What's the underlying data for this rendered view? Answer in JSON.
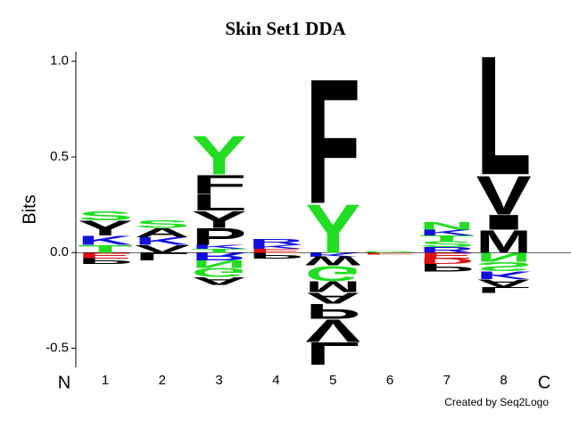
{
  "chart_data": {
    "type": "logo",
    "title": "Skin Set1 DDA",
    "y_label": "Bits",
    "start_label": "N",
    "end_label": "C",
    "credit": "Created by Seq2Logo",
    "ylim": [
      -0.6,
      1.05
    ],
    "yticks": [
      {
        "value": -0.5,
        "label": "-0.5"
      },
      {
        "value": 0,
        "label": "0.0"
      },
      {
        "value": 0.5,
        "label": "0.5"
      },
      {
        "value": 1,
        "label": "1.0"
      }
    ],
    "categories": [
      "1",
      "2",
      "3",
      "4",
      "5",
      "6",
      "7",
      "8"
    ],
    "letters": [
      [
        {
          "letter": "T",
          "value": 0.04,
          "color": "#22dd22"
        },
        {
          "letter": "K",
          "value": 0.05,
          "color": "#1111dd"
        },
        {
          "letter": "Y",
          "value": 0.08,
          "color": "#000000"
        },
        {
          "letter": "S",
          "value": 0.05,
          "color": "#22dd22"
        },
        {
          "letter": "E",
          "value": -0.03,
          "color": "#dd1111"
        },
        {
          "letter": "P",
          "value": -0.03,
          "color": "#000000"
        }
      ],
      [
        {
          "letter": "V",
          "value": 0.04,
          "color": "#000000"
        },
        {
          "letter": "K",
          "value": 0.04,
          "color": "#1111dd"
        },
        {
          "letter": "A",
          "value": 0.05,
          "color": "#000000"
        },
        {
          "letter": "S",
          "value": 0.04,
          "color": "#22dd22"
        },
        {
          "letter": "L",
          "value": -0.04,
          "color": "#000000"
        }
      ],
      [
        {
          "letter": "T",
          "value": 0.02,
          "color": "#22dd22"
        },
        {
          "letter": "K",
          "value": 0.02,
          "color": "#1111dd"
        },
        {
          "letter": "P",
          "value": 0.09,
          "color": "#000000"
        },
        {
          "letter": "Y",
          "value": 0.09,
          "color": "#000000"
        },
        {
          "letter": "L",
          "value": 0.09,
          "color": "#000000"
        },
        {
          "letter": "F",
          "value": 0.1,
          "color": "#000000"
        },
        {
          "letter": "Y",
          "value": 0.21,
          "color": "#22dd22"
        },
        {
          "letter": "R",
          "value": -0.04,
          "color": "#1111dd"
        },
        {
          "letter": "N",
          "value": -0.04,
          "color": "#22dd22"
        },
        {
          "letter": "G",
          "value": -0.05,
          "color": "#22dd22"
        },
        {
          "letter": "A",
          "value": -0.04,
          "color": "#000000"
        }
      ],
      [
        {
          "letter": "E",
          "value": 0.02,
          "color": "#dd1111"
        },
        {
          "letter": "K",
          "value": 0.02,
          "color": "#1111dd"
        },
        {
          "letter": "R",
          "value": 0.03,
          "color": "#1111dd"
        },
        {
          "letter": "P",
          "value": -0.03,
          "color": "#000000"
        }
      ],
      [
        {
          "letter": "Y",
          "value": 0.26,
          "color": "#22dd22"
        },
        {
          "letter": "F",
          "value": 0.67,
          "color": "#000000"
        },
        {
          "letter": "K",
          "value": -0.02,
          "color": "#1111dd"
        },
        {
          "letter": "W",
          "value": -0.05,
          "color": "#000000"
        },
        {
          "letter": "G",
          "value": -0.08,
          "color": "#22dd22"
        },
        {
          "letter": "M",
          "value": -0.06,
          "color": "#000000"
        },
        {
          "letter": "A",
          "value": -0.06,
          "color": "#000000"
        },
        {
          "letter": "P",
          "value": -0.08,
          "color": "#000000"
        },
        {
          "letter": "V",
          "value": -0.12,
          "color": "#000000"
        },
        {
          "letter": "L",
          "value": -0.12,
          "color": "#000000"
        }
      ],
      [
        {
          "letter": "G",
          "value": 0.01,
          "color": "#22dd22"
        },
        {
          "letter": "E",
          "value": -0.01,
          "color": "#dd1111"
        }
      ],
      [
        {
          "letter": "R",
          "value": 0.03,
          "color": "#1111dd"
        },
        {
          "letter": "S",
          "value": 0.03,
          "color": "#22dd22"
        },
        {
          "letter": "T",
          "value": 0.03,
          "color": "#22dd22"
        },
        {
          "letter": "K",
          "value": 0.03,
          "color": "#1111dd"
        },
        {
          "letter": "N",
          "value": 0.04,
          "color": "#22dd22"
        },
        {
          "letter": "E",
          "value": -0.03,
          "color": "#dd1111"
        },
        {
          "letter": "D",
          "value": -0.03,
          "color": "#dd1111"
        },
        {
          "letter": "P",
          "value": -0.04,
          "color": "#000000"
        }
      ],
      [
        {
          "letter": "M",
          "value": 0.12,
          "color": "#000000"
        },
        {
          "letter": "I",
          "value": 0.08,
          "color": "#000000"
        },
        {
          "letter": "V",
          "value": 0.21,
          "color": "#000000"
        },
        {
          "letter": "L",
          "value": 0.64,
          "color": "#000000"
        },
        {
          "letter": "N",
          "value": -0.05,
          "color": "#22dd22"
        },
        {
          "letter": "S",
          "value": -0.05,
          "color": "#22dd22"
        },
        {
          "letter": "K",
          "value": -0.04,
          "color": "#1111dd"
        },
        {
          "letter": "A",
          "value": -0.04,
          "color": "#000000"
        },
        {
          "letter": "L",
          "value": -0.03,
          "color": "#000000"
        }
      ]
    ]
  }
}
